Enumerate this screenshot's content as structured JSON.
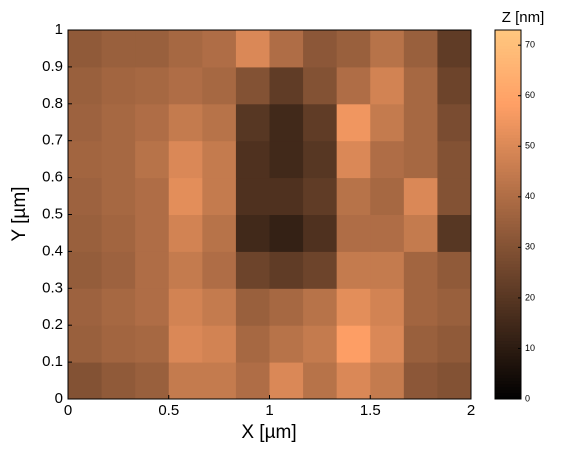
{
  "chart_data": {
    "type": "heatmap",
    "xlabel": "X [µm]",
    "ylabel": "Y [µm]",
    "colorbar_label": "Z [nm]",
    "xlim": [
      0,
      2
    ],
    "ylim": [
      0,
      1
    ],
    "zlim": [
      0,
      73
    ],
    "xticks": [
      0,
      0.5,
      1,
      1.5,
      2
    ],
    "yticks": [
      0,
      0.1,
      0.2,
      0.3,
      0.4,
      0.5,
      0.6,
      0.7,
      0.8,
      0.9,
      1
    ],
    "zticks": [
      0,
      10,
      20,
      30,
      40,
      50,
      60,
      70
    ],
    "colormap": "copper",
    "z": [
      [
        30,
        33,
        35,
        45,
        45,
        40,
        50,
        42,
        50,
        45,
        32,
        30
      ],
      [
        35,
        37,
        38,
        50,
        48,
        38,
        42,
        45,
        58,
        50,
        35,
        33
      ],
      [
        36,
        38,
        40,
        48,
        45,
        35,
        38,
        42,
        52,
        48,
        37,
        35
      ],
      [
        34,
        36,
        40,
        45,
        40,
        25,
        22,
        25,
        45,
        45,
        37,
        33
      ],
      [
        35,
        37,
        40,
        48,
        42,
        15,
        12,
        18,
        40,
        40,
        45,
        20
      ],
      [
        36,
        38,
        40,
        52,
        45,
        18,
        18,
        22,
        42,
        38,
        50,
        30
      ],
      [
        37,
        38,
        42,
        50,
        45,
        18,
        15,
        20,
        50,
        40,
        38,
        30
      ],
      [
        36,
        38,
        40,
        45,
        42,
        20,
        15,
        22,
        55,
        45,
        38,
        28
      ],
      [
        35,
        37,
        38,
        40,
        38,
        30,
        22,
        30,
        40,
        48,
        38,
        25
      ],
      [
        33,
        35,
        35,
        38,
        40,
        50,
        40,
        32,
        35,
        42,
        35,
        22
      ]
    ]
  }
}
